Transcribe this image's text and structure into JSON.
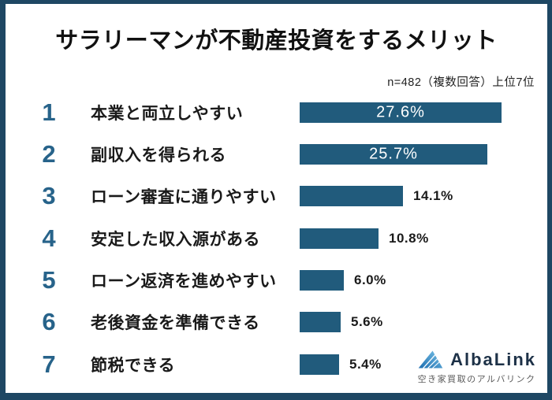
{
  "frame": {
    "border_color": "#1e4763",
    "background": "#ffffff"
  },
  "chart_data": {
    "type": "bar",
    "orientation": "horizontal",
    "title": "サラリーマンが不動産投資をするメリット",
    "subtitle": "n=482（複数回答）上位7位",
    "unit": "%",
    "xlim": [
      0,
      28.3
    ],
    "grid": false,
    "legend": false,
    "bar_color": "#215b7c",
    "rank_color": "#27638a",
    "ranks": [
      "1",
      "2",
      "3",
      "4",
      "5",
      "6",
      "7"
    ],
    "categories": [
      "本業と両立しやすい",
      "副収入を得られる",
      "ローン審査に通りやすい",
      "安定した収入源がある",
      "ローン返済を進めやすい",
      "老後資金を準備できる",
      "節税できる"
    ],
    "values": [
      27.6,
      25.7,
      14.1,
      10.8,
      6.0,
      5.6,
      5.4
    ],
    "value_labels": [
      "27.6%",
      "25.7%",
      "14.1%",
      "10.8%",
      "6.0%",
      "5.6%",
      "5.4%"
    ],
    "value_label_position": [
      "inside",
      "inside",
      "outside",
      "outside",
      "outside",
      "outside",
      "outside"
    ]
  },
  "logo": {
    "name": "AlbaLink",
    "tagline": "空き家買取のアルバリンク",
    "mark_colors": {
      "dark": "#1b6db0",
      "light": "#7cc4e8"
    }
  }
}
